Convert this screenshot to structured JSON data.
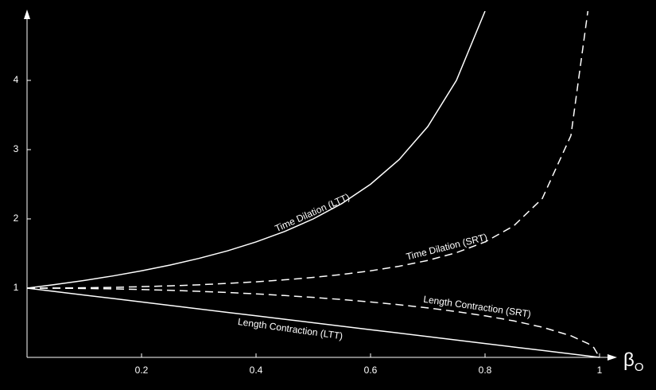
{
  "chart_data": {
    "type": "line",
    "x_label": "β",
    "x_label_sub": "O",
    "x": [
      0,
      0.05,
      0.1,
      0.15,
      0.2,
      0.25,
      0.3,
      0.35,
      0.4,
      0.45,
      0.5,
      0.55,
      0.6,
      0.65,
      0.7,
      0.75,
      0.8,
      0.85,
      0.9,
      0.95,
      0.98,
      0.99,
      1
    ],
    "series": [
      {
        "name": "Time Dilation (LTT)",
        "color": "#ffffff",
        "dashed": false,
        "values": [
          1,
          1.053,
          1.111,
          1.176,
          1.25,
          1.333,
          1.429,
          1.538,
          1.667,
          1.818,
          2,
          2.222,
          2.5,
          2.857,
          3.333,
          4,
          5,
          null,
          null,
          null,
          null,
          null,
          null
        ]
      },
      {
        "name": "Time Dilation (SRT)",
        "color": "#ffffff",
        "dashed": true,
        "values": [
          1,
          1.001,
          1.005,
          1.011,
          1.021,
          1.033,
          1.048,
          1.068,
          1.091,
          1.12,
          1.155,
          1.197,
          1.25,
          1.316,
          1.4,
          1.512,
          1.667,
          1.898,
          2.294,
          3.203,
          5.025,
          null,
          null
        ]
      },
      {
        "name": "Length Contraction (SRT)",
        "color": "#ffffff",
        "dashed": true,
        "values": [
          1,
          0.999,
          0.995,
          0.989,
          0.98,
          0.968,
          0.954,
          0.937,
          0.917,
          0.893,
          0.866,
          0.835,
          0.8,
          0.76,
          0.714,
          0.661,
          0.6,
          0.527,
          0.436,
          0.312,
          0.199,
          0.141,
          0
        ]
      },
      {
        "name": "Length Contraction (LTT)",
        "color": "#ffffff",
        "dashed": false,
        "values": [
          1,
          0.95,
          0.9,
          0.85,
          0.8,
          0.75,
          0.7,
          0.65,
          0.6,
          0.55,
          0.5,
          0.45,
          0.4,
          0.35,
          0.3,
          0.25,
          0.2,
          0.15,
          0.1,
          0.05,
          0.02,
          0.01,
          0
        ]
      }
    ],
    "xlim": [
      0,
      1
    ],
    "ylim": [
      0,
      5
    ],
    "xticks": [
      0.2,
      0.4,
      0.6,
      0.8,
      1
    ],
    "yticks": [
      1,
      2,
      3,
      4
    ]
  }
}
